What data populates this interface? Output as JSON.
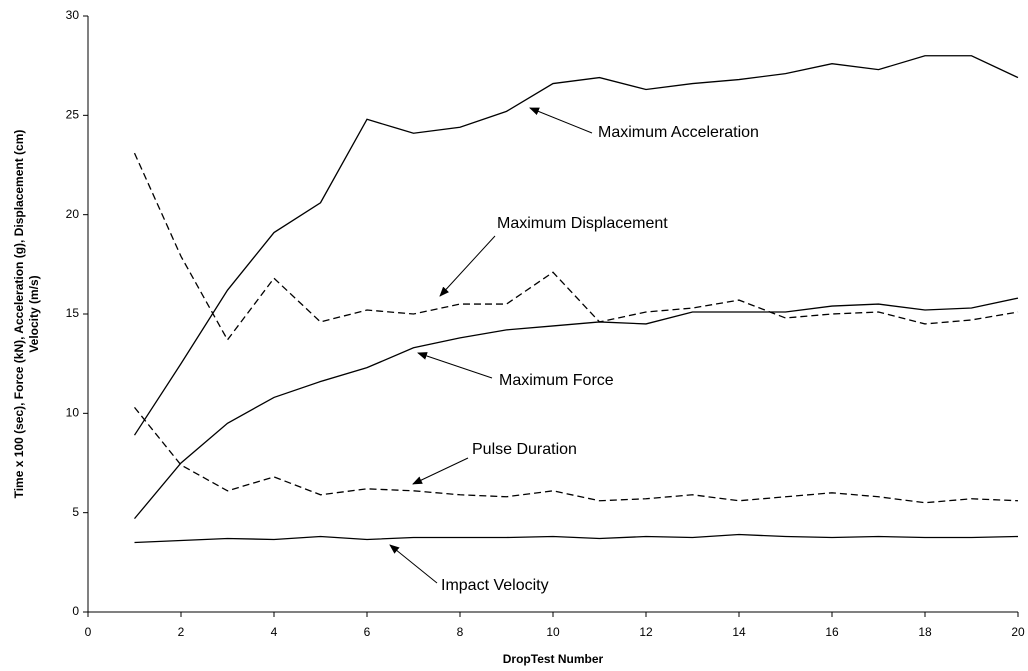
{
  "chart_data": {
    "type": "line",
    "xlabel": "DropTest Number",
    "ylabel": [
      "Time x 100 (sec), Force (kN), Acceleration (g), Displacement (cm)",
      "Velocity (m/s)"
    ],
    "x": [
      1,
      2,
      3,
      4,
      5,
      6,
      7,
      8,
      9,
      10,
      11,
      12,
      13,
      14,
      15,
      16,
      17,
      18,
      19,
      20
    ],
    "series": [
      {
        "name": "Maximum Acceleration",
        "color": "#000000",
        "style": "solid",
        "values": [
          8.9,
          12.5,
          16.2,
          19.1,
          20.6,
          24.8,
          24.1,
          24.4,
          25.2,
          26.6,
          26.9,
          26.3,
          26.6,
          26.8,
          27.1,
          27.6,
          27.3,
          28.0,
          28.0,
          26.9
        ]
      },
      {
        "name": "Maximum Displacement",
        "color": "#000000",
        "style": "dashed",
        "values": [
          23.1,
          17.9,
          13.7,
          16.8,
          14.6,
          15.2,
          15.0,
          15.5,
          15.5,
          17.1,
          14.6,
          15.1,
          15.3,
          15.7,
          14.8,
          15.0,
          15.1,
          14.5,
          14.7,
          15.1
        ]
      },
      {
        "name": "Maximum Force",
        "color": "#000000",
        "style": "solid",
        "values": [
          4.7,
          7.5,
          9.5,
          10.8,
          11.6,
          12.3,
          13.3,
          13.8,
          14.2,
          14.4,
          14.6,
          14.5,
          15.1,
          15.1,
          15.1,
          15.4,
          15.5,
          15.2,
          15.3,
          15.8
        ]
      },
      {
        "name": "Pulse Duration",
        "color": "#000000",
        "style": "dashed",
        "values": [
          10.3,
          7.4,
          6.1,
          6.8,
          5.9,
          6.2,
          6.1,
          5.9,
          5.8,
          6.1,
          5.6,
          5.7,
          5.9,
          5.6,
          5.8,
          6.0,
          5.8,
          5.5,
          5.7,
          5.6
        ]
      },
      {
        "name": "Impact Velocity",
        "color": "#000000",
        "style": "solid",
        "values": [
          3.5,
          3.6,
          3.7,
          3.65,
          3.8,
          3.65,
          3.75,
          3.75,
          3.75,
          3.8,
          3.7,
          3.8,
          3.75,
          3.9,
          3.8,
          3.75,
          3.8,
          3.75,
          3.75,
          3.8
        ]
      }
    ],
    "xlim": [
      0,
      20
    ],
    "xticks": [
      0,
      2,
      4,
      6,
      8,
      10,
      12,
      14,
      16,
      18,
      20
    ],
    "ylim": [
      0,
      30
    ],
    "yticks": [
      0,
      5,
      10,
      15,
      20,
      25,
      30
    ],
    "grid": false
  }
}
